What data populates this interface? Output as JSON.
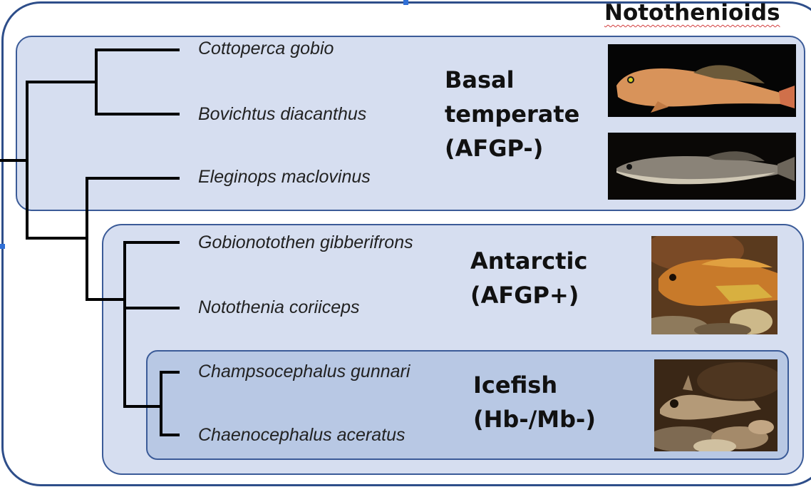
{
  "title": "Notothenioids",
  "groups": {
    "basal": {
      "line1": "Basal",
      "line2": "temperate",
      "line3": "(AFGP-)"
    },
    "antarctic": {
      "line1": "Antarctic",
      "line2": "(AFGP+)"
    },
    "icefish": {
      "line1": "Icefish",
      "line2": "(Hb-/Mb-)"
    }
  },
  "species": [
    "Cottoperca gobio",
    "Bovichtus diacanthus",
    "Eleginops maclovinus",
    "Gobionotothen gibberifrons",
    "Notothenia coriiceps",
    "Champsocephalus gunnari",
    "Chaenocephalus aceratus"
  ],
  "colors": {
    "outer_border": "#2e4e8a",
    "basal_box": "#d6def0",
    "antarctic_box": "#d6def0",
    "icefish_box": "#b8c8e4",
    "tree": "#000000"
  }
}
